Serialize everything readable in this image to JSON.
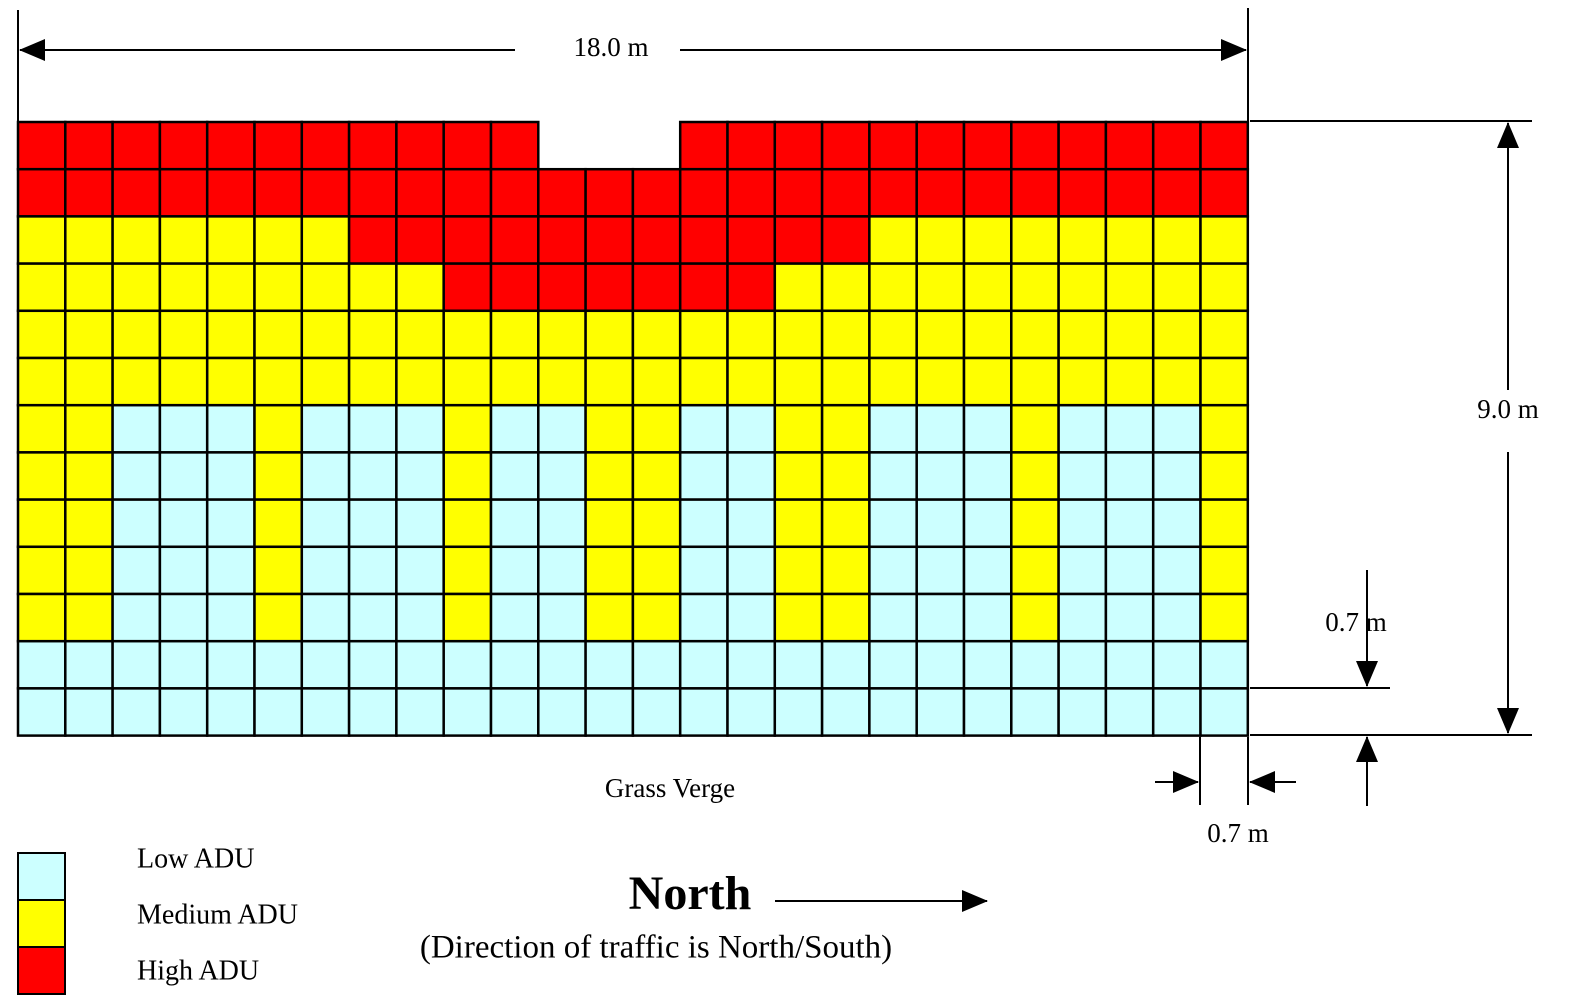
{
  "dimensions": {
    "width_label": "18.0 m",
    "height_label": "9.0 m",
    "cell_height_label": "0.7 m",
    "cell_width_label": "0.7 m"
  },
  "verge_label": "Grass Verge",
  "legend": [
    {
      "key": "L",
      "label": "Low ADU",
      "color": "#CCFFFF"
    },
    {
      "key": "M",
      "label": "Medium ADU",
      "color": "#FFFF00"
    },
    {
      "key": "H",
      "label": "High ADU",
      "color": "#FF0000"
    }
  ],
  "direction": {
    "label": "North",
    "note": "(Direction of traffic is North/South)"
  },
  "grid": {
    "columns": 26,
    "rows": [
      "HHHHHHHHHHH___HHHHHHHHHHHH",
      "HHHHHHHHHHHHHHHHHHHHHHHHHH",
      "MMMMMMMHHHHHHHHHHHMMMMMMMM",
      "MMMMMMMMMHHHHHHHMMMMMMMMMM",
      "MMMMMMMMMMMMMMMMMMMMMMMMMM",
      "MMMMMMMMMMMMMMMMMMMMMMMMMM",
      "MMLLLMLLLMLLMMLLMMLLLMLLLM",
      "MMLLLMLLLMLLMMLLMMLLLMLLLM",
      "MMLLLMLLLMLLMMLLMMLLLMLLLM",
      "MMLLLMLLLMLLMMLLMMLLLMLLLM",
      "MMLLLMLLLMLLMMLLMMLLLMLLLM",
      "LLLLLLLLLLLLLLLLLLLLLLLLLL",
      "LLLLLLLLLLLLLLLLLLLLLLLLLL"
    ]
  }
}
